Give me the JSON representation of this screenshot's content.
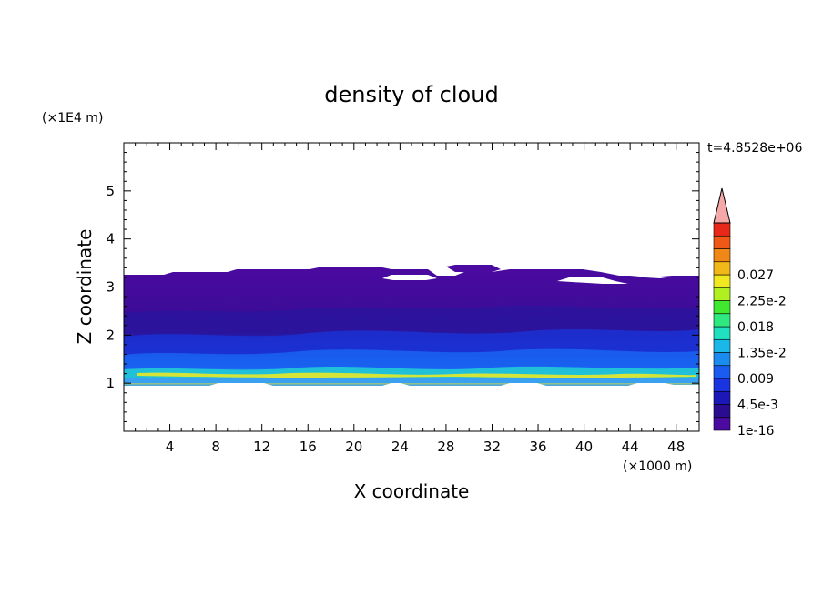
{
  "chart_data": {
    "type": "heatmap",
    "title": "density of cloud",
    "xlabel": "X coordinate",
    "ylabel": "Z coordinate",
    "x_unit": "(×1000 m)",
    "y_unit": "(×1E4 m)",
    "time_label": "t=4.8528e+06",
    "xlim": [
      0,
      50
    ],
    "ylim": [
      0,
      6
    ],
    "x_ticks": [
      "4",
      "8",
      "12",
      "16",
      "20",
      "24",
      "28",
      "32",
      "36",
      "40",
      "44",
      "48"
    ],
    "x_tick_values": [
      4,
      8,
      12,
      16,
      20,
      24,
      28,
      32,
      36,
      40,
      44,
      48
    ],
    "y_ticks": [
      "1",
      "2",
      "3",
      "4",
      "5"
    ],
    "y_tick_values": [
      1,
      2,
      3,
      4,
      5
    ],
    "colorbar": {
      "labels": [
        "1e-16",
        "4.5e-3",
        "0.009",
        "1.35e-2",
        "0.018",
        "2.25e-2",
        "0.027"
      ],
      "colors": [
        "#4b0aa0",
        "#2a0c90",
        "#1c18b8",
        "#1a34e0",
        "#1a5cf0",
        "#1a8cf0",
        "#1ab8e8",
        "#20e0c0",
        "#30e880",
        "#40e830",
        "#b0f020",
        "#f0e820",
        "#f0b818",
        "#f08818",
        "#f05818",
        "#e82818"
      ],
      "extend_color": "#f4a8a8"
    },
    "cloud_layer": {
      "base_height": 1.0,
      "top_height": 3.2,
      "dense_band_height": 1.1
    }
  }
}
